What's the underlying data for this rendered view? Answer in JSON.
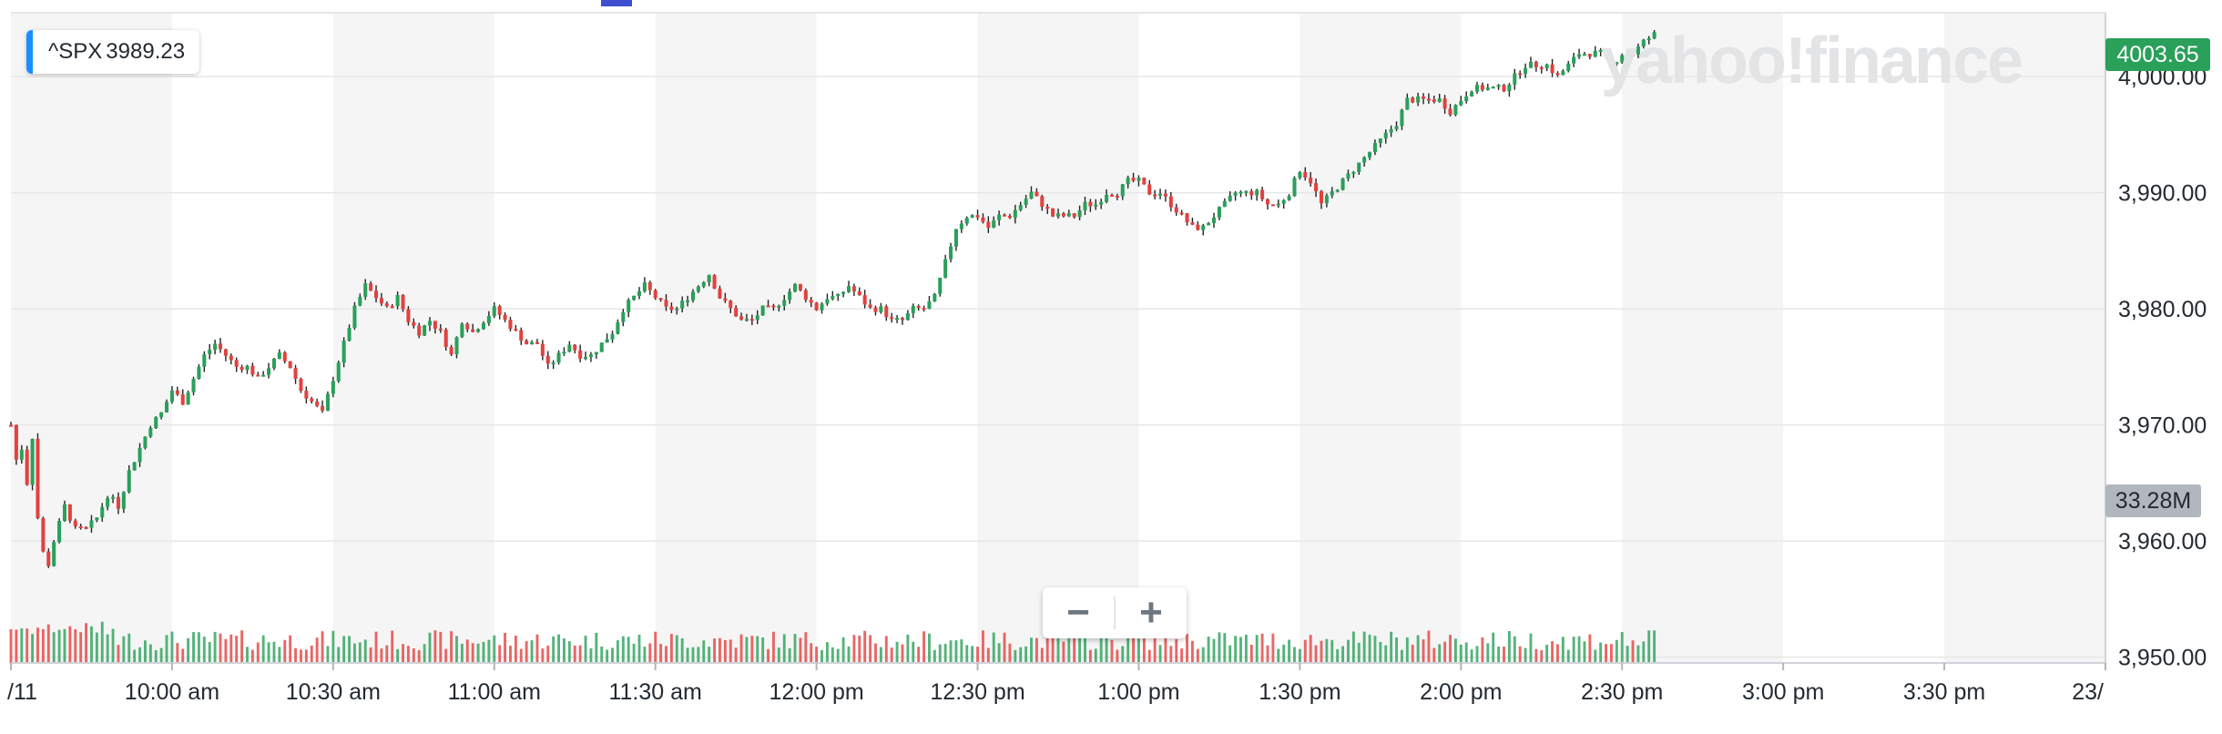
{
  "legend": {
    "symbol": "^SPX",
    "value": "3989.23"
  },
  "watermark": "yahoo!finance",
  "last_price_tag": "4003.65",
  "volume_tag": "33.28M",
  "zoom": {
    "minus": "−",
    "plus": "+"
  },
  "colors": {
    "up": "#2aa05a",
    "down": "#e3413f",
    "band": "#f5f5f5",
    "grid": "#e6e6e6"
  },
  "chart_data": {
    "type": "candlestick",
    "symbol": "^SPX",
    "y_ticks": [
      "3,950.00",
      "3,960.00",
      "3,970.00",
      "3,980.00",
      "3,990.00",
      "4,000.00"
    ],
    "y_values": [
      3950,
      3960,
      3970,
      3980,
      3990,
      4000
    ],
    "ylim": [
      3949.5,
      4005.5
    ],
    "x_ticks": [
      "/11",
      "10:00 am",
      "10:30 am",
      "11:00 am",
      "11:30 am",
      "12:00 pm",
      "12:30 pm",
      "1:00 pm",
      "1:30 pm",
      "2:00 pm",
      "2:30 pm",
      "3:00 pm",
      "3:30 pm",
      "23/"
    ],
    "x_tick_minutes": [
      0,
      30,
      60,
      90,
      120,
      150,
      180,
      210,
      240,
      270,
      300,
      330,
      360,
      390
    ],
    "x_start_time": "9:30 am",
    "close_path": [
      [
        0,
        3970
      ],
      [
        1,
        3967
      ],
      [
        2,
        3968
      ],
      [
        3,
        3965
      ],
      [
        4,
        3969
      ],
      [
        5,
        3962
      ],
      [
        6,
        3959
      ],
      [
        7,
        3958
      ],
      [
        8,
        3960
      ],
      [
        10,
        3963
      ],
      [
        12,
        3961
      ],
      [
        14,
        3961
      ],
      [
        16,
        3962
      ],
      [
        18,
        3964
      ],
      [
        20,
        3963
      ],
      [
        22,
        3966
      ],
      [
        24,
        3968
      ],
      [
        26,
        3970
      ],
      [
        28,
        3971
      ],
      [
        30,
        3973
      ],
      [
        32,
        3972
      ],
      [
        34,
        3974
      ],
      [
        36,
        3976
      ],
      [
        38,
        3977
      ],
      [
        40,
        3976
      ],
      [
        42,
        3975
      ],
      [
        44,
        3975
      ],
      [
        46,
        3974
      ],
      [
        48,
        3975
      ],
      [
        50,
        3976
      ],
      [
        52,
        3975
      ],
      [
        54,
        3973
      ],
      [
        56,
        3972
      ],
      [
        58,
        3971
      ],
      [
        60,
        3974
      ],
      [
        62,
        3977
      ],
      [
        64,
        3980
      ],
      [
        66,
        3982
      ],
      [
        68,
        3981
      ],
      [
        70,
        3980
      ],
      [
        72,
        3981
      ],
      [
        74,
        3979
      ],
      [
        76,
        3978
      ],
      [
        78,
        3979
      ],
      [
        80,
        3978
      ],
      [
        82,
        3976
      ],
      [
        84,
        3979
      ],
      [
        86,
        3978
      ],
      [
        88,
        3979
      ],
      [
        90,
        3980
      ],
      [
        92,
        3979
      ],
      [
        94,
        3978
      ],
      [
        96,
        3977
      ],
      [
        98,
        3977
      ],
      [
        100,
        3975
      ],
      [
        102,
        3976
      ],
      [
        104,
        3977
      ],
      [
        106,
        3976
      ],
      [
        108,
        3976
      ],
      [
        110,
        3977
      ],
      [
        112,
        3978
      ],
      [
        114,
        3980
      ],
      [
        116,
        3981
      ],
      [
        118,
        3982
      ],
      [
        120,
        3981
      ],
      [
        122,
        3980
      ],
      [
        124,
        3980
      ],
      [
        126,
        3981
      ],
      [
        128,
        3982
      ],
      [
        130,
        3983
      ],
      [
        132,
        3981
      ],
      [
        134,
        3980
      ],
      [
        136,
        3979
      ],
      [
        138,
        3979
      ],
      [
        140,
        3980
      ],
      [
        142,
        3980
      ],
      [
        144,
        3981
      ],
      [
        146,
        3982
      ],
      [
        148,
        3981
      ],
      [
        150,
        3980
      ],
      [
        152,
        3981
      ],
      [
        154,
        3981
      ],
      [
        156,
        3982
      ],
      [
        158,
        3981
      ],
      [
        160,
        3980
      ],
      [
        162,
        3980
      ],
      [
        164,
        3979
      ],
      [
        166,
        3979
      ],
      [
        168,
        3980
      ],
      [
        170,
        3980
      ],
      [
        172,
        3981
      ],
      [
        174,
        3984
      ],
      [
        176,
        3987
      ],
      [
        178,
        3988
      ],
      [
        180,
        3988
      ],
      [
        182,
        3987
      ],
      [
        184,
        3988
      ],
      [
        186,
        3988
      ],
      [
        188,
        3989
      ],
      [
        190,
        3990
      ],
      [
        192,
        3989
      ],
      [
        194,
        3988
      ],
      [
        196,
        3988
      ],
      [
        198,
        3988
      ],
      [
        200,
        3989
      ],
      [
        202,
        3989
      ],
      [
        204,
        3990
      ],
      [
        206,
        3990
      ],
      [
        208,
        3991
      ],
      [
        210,
        3991
      ],
      [
        212,
        3990
      ],
      [
        214,
        3990
      ],
      [
        216,
        3989
      ],
      [
        218,
        3988
      ],
      [
        220,
        3987
      ],
      [
        222,
        3987
      ],
      [
        224,
        3988
      ],
      [
        226,
        3989
      ],
      [
        228,
        3990
      ],
      [
        230,
        3990
      ],
      [
        232,
        3990
      ],
      [
        234,
        3989
      ],
      [
        236,
        3989
      ],
      [
        238,
        3990
      ],
      [
        240,
        3992
      ],
      [
        242,
        3991
      ],
      [
        244,
        3989
      ],
      [
        246,
        3990
      ],
      [
        248,
        3991
      ],
      [
        250,
        3992
      ],
      [
        252,
        3993
      ],
      [
        254,
        3994
      ],
      [
        256,
        3995
      ],
      [
        258,
        3996
      ],
      [
        260,
        3998
      ],
      [
        262,
        3998
      ],
      [
        264,
        3998
      ],
      [
        266,
        3998
      ],
      [
        268,
        3997
      ],
      [
        270,
        3998
      ],
      [
        272,
        3999
      ],
      [
        274,
        3999
      ],
      [
        276,
        3999
      ],
      [
        278,
        3999
      ],
      [
        280,
        4000
      ],
      [
        282,
        4001
      ],
      [
        284,
        4001
      ],
      [
        286,
        4001
      ],
      [
        288,
        4000
      ],
      [
        290,
        4001
      ],
      [
        292,
        4002
      ],
      [
        294,
        4002
      ],
      [
        296,
        4002
      ],
      [
        298,
        4001
      ],
      [
        300,
        4002
      ],
      [
        302,
        4002
      ],
      [
        304,
        4003
      ],
      [
        306,
        4003.65
      ]
    ]
  }
}
